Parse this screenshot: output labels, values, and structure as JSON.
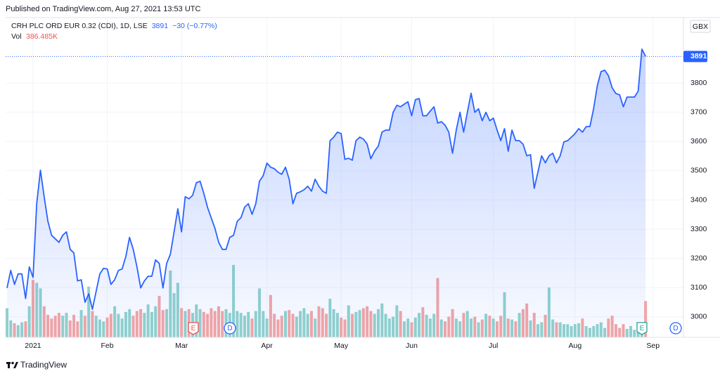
{
  "header": {
    "published": "Published on TradingView.com, Aug 27, 2021 13:53 UTC",
    "brand": "TradingView"
  },
  "chart_data": {
    "type": "line",
    "title": "CRH PLC ORD EUR 0.32 (CDI), 1D, LSE",
    "change_label": "−30 (−0.77%)",
    "currency": "GBX",
    "categories": [
      null,
      null,
      null,
      null,
      null,
      null,
      null,
      "2021",
      null,
      null,
      null,
      null,
      null,
      null,
      null,
      null,
      null,
      null,
      null,
      null,
      null,
      null,
      null,
      null,
      null,
      null,
      null,
      "Feb",
      null,
      null,
      null,
      null,
      null,
      null,
      null,
      null,
      null,
      null,
      null,
      null,
      null,
      null,
      null,
      null,
      null,
      null,
      null,
      "Mar",
      null,
      null,
      null,
      null,
      null,
      null,
      null,
      null,
      null,
      null,
      null,
      null,
      null,
      null,
      null,
      null,
      null,
      null,
      null,
      null,
      null,
      null,
      "Apr",
      null,
      null,
      null,
      null,
      null,
      null,
      null,
      null,
      null,
      null,
      null,
      null,
      null,
      null,
      null,
      null,
      null,
      null,
      null,
      "May",
      null,
      null,
      null,
      null,
      null,
      null,
      null,
      null,
      null,
      null,
      null,
      null,
      null,
      null,
      null,
      null,
      null,
      null,
      "Jun",
      null,
      null,
      null,
      null,
      null,
      null,
      null,
      null,
      null,
      null,
      null,
      null,
      null,
      null,
      null,
      null,
      null,
      null,
      null,
      null,
      null,
      "Jul",
      null,
      null,
      null,
      null,
      null,
      null,
      null,
      null,
      null,
      null,
      null,
      null,
      null,
      null,
      null,
      null,
      null,
      null,
      null,
      null,
      null,
      "Aug",
      null,
      null,
      null,
      null,
      null,
      null,
      null,
      null,
      null,
      null,
      null,
      null,
      null,
      null,
      null,
      null,
      null,
      null,
      null,
      null,
      "Sep"
    ],
    "series": [
      {
        "color": "#2962ff",
        "values": [
          3099,
          3159,
          3111,
          3147,
          3147,
          3063,
          3171,
          3135,
          3387,
          3502,
          3411,
          3327,
          3279,
          3267,
          3255,
          3279,
          3291,
          3231,
          3219,
          3123,
          3127,
          3050,
          3079,
          3026,
          3087,
          3147,
          3166,
          3164,
          3111,
          3127,
          3159,
          3164,
          3207,
          3272,
          3231,
          3171,
          3099,
          3123,
          3139,
          3139,
          3195,
          3183,
          3099,
          3183,
          3214,
          3291,
          3370,
          3291,
          3411,
          3404,
          3416,
          3459,
          3464,
          3423,
          3375,
          3339,
          3303,
          3255,
          3231,
          3231,
          3272,
          3279,
          3327,
          3339,
          3375,
          3387,
          3351,
          3387,
          3464,
          3483,
          3526,
          3512,
          3507,
          3495,
          3488,
          3512,
          3471,
          3387,
          3423,
          3428,
          3435,
          3447,
          3430,
          3471,
          3447,
          3430,
          3423,
          3603,
          3615,
          3632,
          3627,
          3539,
          3543,
          3536,
          3603,
          3615,
          3608,
          3591,
          3541,
          3567,
          3584,
          3632,
          3639,
          3639,
          3700,
          3724,
          3719,
          3728,
          3736,
          3688,
          3743,
          3747,
          3688,
          3688,
          3704,
          3719,
          3663,
          3668,
          3656,
          3632,
          3560,
          3639,
          3700,
          3632,
          3700,
          3765,
          3700,
          3712,
          3671,
          3700,
          3671,
          3680,
          3639,
          3603,
          3644,
          3567,
          3639,
          3603,
          3603,
          3591,
          3551,
          3555,
          3440,
          3495,
          3551,
          3527,
          3551,
          3560,
          3527,
          3551,
          3599,
          3603,
          3615,
          3627,
          3644,
          3632,
          3651,
          3651,
          3712,
          3791,
          3839,
          3844,
          3825,
          3784,
          3764,
          3760,
          3719,
          3752,
          3752,
          3752,
          3772,
          3916,
          3891,
          null,
          null
        ]
      },
      {
        "name": "Vol",
        "type": "bar",
        "axis": "y2",
        "up_color": "#92d3cc",
        "down_color": "#f5a6a5",
        "value_label": "386.485K",
        "values": [
          310000,
          180000,
          150000,
          130000,
          160000,
          170000,
          330000,
          610000,
          580000,
          520000,
          330000,
          240000,
          200000,
          230000,
          260000,
          230000,
          260000,
          180000,
          240000,
          170000,
          290000,
          230000,
          540000,
          280000,
          230000,
          190000,
          170000,
          210000,
          250000,
          330000,
          250000,
          200000,
          270000,
          300000,
          230000,
          280000,
          300000,
          260000,
          350000,
          270000,
          330000,
          440000,
          290000,
          300000,
          710000,
          470000,
          580000,
          310000,
          280000,
          300000,
          260000,
          350000,
          300000,
          270000,
          250000,
          310000,
          280000,
          330000,
          280000,
          300000,
          260000,
          770000,
          280000,
          260000,
          230000,
          270000,
          200000,
          280000,
          520000,
          280000,
          200000,
          450000,
          250000,
          190000,
          230000,
          280000,
          290000,
          250000,
          220000,
          280000,
          310000,
          250000,
          280000,
          200000,
          330000,
          310000,
          250000,
          410000,
          300000,
          260000,
          210000,
          190000,
          340000,
          250000,
          270000,
          290000,
          310000,
          330000,
          280000,
          250000,
          300000,
          360000,
          250000,
          200000,
          220000,
          340000,
          280000,
          170000,
          200000,
          160000,
          210000,
          260000,
          320000,
          240000,
          200000,
          250000,
          630000,
          190000,
          170000,
          220000,
          300000,
          200000,
          170000,
          260000,
          280000,
          200000,
          220000,
          160000,
          190000,
          250000,
          230000,
          200000,
          170000,
          230000,
          480000,
          200000,
          190000,
          170000,
          260000,
          300000,
          360000,
          180000,
          260000,
          140000,
          160000,
          240000,
          530000,
          190000,
          160000,
          160000,
          140000,
          140000,
          120000,
          140000,
          150000,
          200000,
          120000,
          100000,
          120000,
          140000,
          160000,
          100000,
          200000,
          230000,
          140000,
          100000,
          140000,
          90000,
          120000,
          80000,
          140000,
          160000,
          386485,
          null,
          null
        ]
      }
    ],
    "ylim": [
      2930,
      4024
    ],
    "yticks": [
      3000,
      3100,
      3200,
      3300,
      3400,
      3500,
      3600,
      3700,
      3800
    ],
    "y2lim": [
      0,
      3400000
    ],
    "grid": true,
    "events": [
      "E",
      "D",
      "E",
      "D"
    ]
  }
}
